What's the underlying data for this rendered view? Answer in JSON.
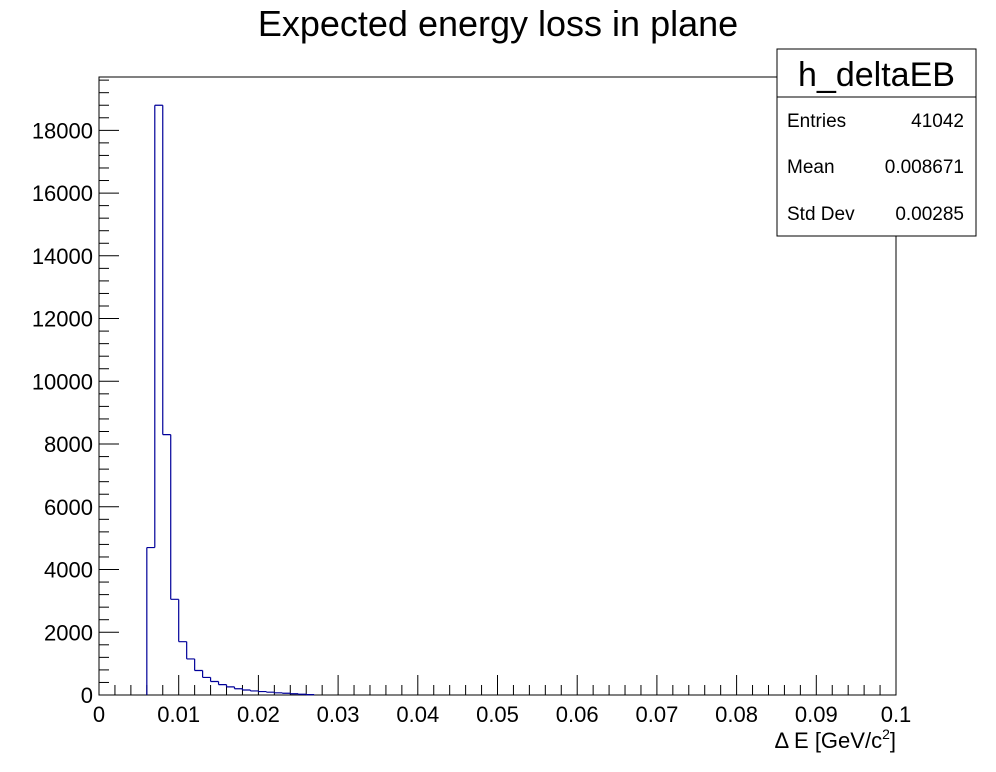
{
  "chart_data": {
    "type": "bar",
    "title": "Expected energy loss in plane",
    "xlabel": "Δ E [GeV/c²]",
    "xlabel_parts": {
      "main": "Δ E [GeV/c",
      "superscript": "2",
      "close": "]"
    },
    "ylabel": "",
    "xlim": [
      0,
      0.1
    ],
    "ylim": [
      0,
      19700
    ],
    "x_ticks": [
      0,
      0.01,
      0.02,
      0.03,
      0.04,
      0.05,
      0.06,
      0.07,
      0.08,
      0.09,
      0.1
    ],
    "x_tick_labels": [
      "0",
      "0.01",
      "0.02",
      "0.03",
      "0.04",
      "0.05",
      "0.06",
      "0.07",
      "0.08",
      "0.09",
      "0.1"
    ],
    "y_ticks": [
      0,
      2000,
      4000,
      6000,
      8000,
      10000,
      12000,
      14000,
      16000,
      18000
    ],
    "y_tick_labels": [
      "0",
      "2000",
      "4000",
      "6000",
      "8000",
      "10000",
      "12000",
      "14000",
      "16000",
      "18000"
    ],
    "grid": false,
    "legend": "none",
    "bin_width": 0.001,
    "bin_start": 0,
    "values": [
      0,
      0,
      0,
      0,
      0,
      0,
      4700,
      18800,
      8300,
      3050,
      1700,
      1150,
      780,
      560,
      430,
      330,
      260,
      200,
      160,
      130,
      110,
      90,
      70,
      55,
      40,
      25,
      12,
      0,
      0,
      0,
      0,
      0,
      0,
      0,
      0,
      0,
      0,
      0,
      0,
      0,
      0,
      0,
      0,
      0,
      0,
      0,
      0,
      0,
      0,
      0,
      0,
      0,
      0,
      0,
      0,
      0,
      0,
      0,
      0,
      0,
      0,
      0,
      0,
      0,
      0,
      0,
      0,
      0,
      0,
      0,
      0,
      0,
      0,
      0,
      0,
      0,
      0,
      0,
      0,
      0,
      0,
      0,
      0,
      0,
      0,
      0,
      0,
      0,
      0,
      0,
      0,
      0,
      0,
      0,
      0,
      0,
      0,
      0,
      0,
      0
    ],
    "line_color": "#000099",
    "stats_box": {
      "name": "h_deltaEB",
      "rows": [
        {
          "label": "Entries",
          "value": "41042"
        },
        {
          "label": "Mean",
          "value": "0.008671"
        },
        {
          "label": "Std Dev",
          "value": "0.00285"
        }
      ]
    }
  }
}
